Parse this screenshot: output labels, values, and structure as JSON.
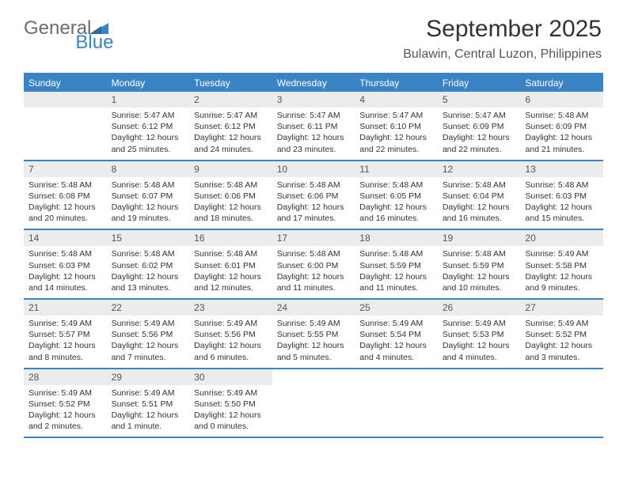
{
  "logo": {
    "text1": "General",
    "text2": "Blue"
  },
  "header": {
    "month": "September 2025",
    "location": "Bulawin, Central Luzon, Philippines"
  },
  "colors": {
    "accent": "#3a84c5",
    "header_bg": "#3a84c5",
    "daynum_bg": "#ececec",
    "text": "#333333"
  },
  "weekdays": [
    "Sunday",
    "Monday",
    "Tuesday",
    "Wednesday",
    "Thursday",
    "Friday",
    "Saturday"
  ],
  "weeks": [
    [
      null,
      {
        "n": "1",
        "sr": "Sunrise: 5:47 AM",
        "ss": "Sunset: 6:12 PM",
        "d1": "Daylight: 12 hours",
        "d2": "and 25 minutes."
      },
      {
        "n": "2",
        "sr": "Sunrise: 5:47 AM",
        "ss": "Sunset: 6:12 PM",
        "d1": "Daylight: 12 hours",
        "d2": "and 24 minutes."
      },
      {
        "n": "3",
        "sr": "Sunrise: 5:47 AM",
        "ss": "Sunset: 6:11 PM",
        "d1": "Daylight: 12 hours",
        "d2": "and 23 minutes."
      },
      {
        "n": "4",
        "sr": "Sunrise: 5:47 AM",
        "ss": "Sunset: 6:10 PM",
        "d1": "Daylight: 12 hours",
        "d2": "and 22 minutes."
      },
      {
        "n": "5",
        "sr": "Sunrise: 5:47 AM",
        "ss": "Sunset: 6:09 PM",
        "d1": "Daylight: 12 hours",
        "d2": "and 22 minutes."
      },
      {
        "n": "6",
        "sr": "Sunrise: 5:48 AM",
        "ss": "Sunset: 6:09 PM",
        "d1": "Daylight: 12 hours",
        "d2": "and 21 minutes."
      }
    ],
    [
      {
        "n": "7",
        "sr": "Sunrise: 5:48 AM",
        "ss": "Sunset: 6:08 PM",
        "d1": "Daylight: 12 hours",
        "d2": "and 20 minutes."
      },
      {
        "n": "8",
        "sr": "Sunrise: 5:48 AM",
        "ss": "Sunset: 6:07 PM",
        "d1": "Daylight: 12 hours",
        "d2": "and 19 minutes."
      },
      {
        "n": "9",
        "sr": "Sunrise: 5:48 AM",
        "ss": "Sunset: 6:06 PM",
        "d1": "Daylight: 12 hours",
        "d2": "and 18 minutes."
      },
      {
        "n": "10",
        "sr": "Sunrise: 5:48 AM",
        "ss": "Sunset: 6:06 PM",
        "d1": "Daylight: 12 hours",
        "d2": "and 17 minutes."
      },
      {
        "n": "11",
        "sr": "Sunrise: 5:48 AM",
        "ss": "Sunset: 6:05 PM",
        "d1": "Daylight: 12 hours",
        "d2": "and 16 minutes."
      },
      {
        "n": "12",
        "sr": "Sunrise: 5:48 AM",
        "ss": "Sunset: 6:04 PM",
        "d1": "Daylight: 12 hours",
        "d2": "and 16 minutes."
      },
      {
        "n": "13",
        "sr": "Sunrise: 5:48 AM",
        "ss": "Sunset: 6:03 PM",
        "d1": "Daylight: 12 hours",
        "d2": "and 15 minutes."
      }
    ],
    [
      {
        "n": "14",
        "sr": "Sunrise: 5:48 AM",
        "ss": "Sunset: 6:03 PM",
        "d1": "Daylight: 12 hours",
        "d2": "and 14 minutes."
      },
      {
        "n": "15",
        "sr": "Sunrise: 5:48 AM",
        "ss": "Sunset: 6:02 PM",
        "d1": "Daylight: 12 hours",
        "d2": "and 13 minutes."
      },
      {
        "n": "16",
        "sr": "Sunrise: 5:48 AM",
        "ss": "Sunset: 6:01 PM",
        "d1": "Daylight: 12 hours",
        "d2": "and 12 minutes."
      },
      {
        "n": "17",
        "sr": "Sunrise: 5:48 AM",
        "ss": "Sunset: 6:00 PM",
        "d1": "Daylight: 12 hours",
        "d2": "and 11 minutes."
      },
      {
        "n": "18",
        "sr": "Sunrise: 5:48 AM",
        "ss": "Sunset: 5:59 PM",
        "d1": "Daylight: 12 hours",
        "d2": "and 11 minutes."
      },
      {
        "n": "19",
        "sr": "Sunrise: 5:48 AM",
        "ss": "Sunset: 5:59 PM",
        "d1": "Daylight: 12 hours",
        "d2": "and 10 minutes."
      },
      {
        "n": "20",
        "sr": "Sunrise: 5:49 AM",
        "ss": "Sunset: 5:58 PM",
        "d1": "Daylight: 12 hours",
        "d2": "and 9 minutes."
      }
    ],
    [
      {
        "n": "21",
        "sr": "Sunrise: 5:49 AM",
        "ss": "Sunset: 5:57 PM",
        "d1": "Daylight: 12 hours",
        "d2": "and 8 minutes."
      },
      {
        "n": "22",
        "sr": "Sunrise: 5:49 AM",
        "ss": "Sunset: 5:56 PM",
        "d1": "Daylight: 12 hours",
        "d2": "and 7 minutes."
      },
      {
        "n": "23",
        "sr": "Sunrise: 5:49 AM",
        "ss": "Sunset: 5:56 PM",
        "d1": "Daylight: 12 hours",
        "d2": "and 6 minutes."
      },
      {
        "n": "24",
        "sr": "Sunrise: 5:49 AM",
        "ss": "Sunset: 5:55 PM",
        "d1": "Daylight: 12 hours",
        "d2": "and 5 minutes."
      },
      {
        "n": "25",
        "sr": "Sunrise: 5:49 AM",
        "ss": "Sunset: 5:54 PM",
        "d1": "Daylight: 12 hours",
        "d2": "and 4 minutes."
      },
      {
        "n": "26",
        "sr": "Sunrise: 5:49 AM",
        "ss": "Sunset: 5:53 PM",
        "d1": "Daylight: 12 hours",
        "d2": "and 4 minutes."
      },
      {
        "n": "27",
        "sr": "Sunrise: 5:49 AM",
        "ss": "Sunset: 5:52 PM",
        "d1": "Daylight: 12 hours",
        "d2": "and 3 minutes."
      }
    ],
    [
      {
        "n": "28",
        "sr": "Sunrise: 5:49 AM",
        "ss": "Sunset: 5:52 PM",
        "d1": "Daylight: 12 hours",
        "d2": "and 2 minutes."
      },
      {
        "n": "29",
        "sr": "Sunrise: 5:49 AM",
        "ss": "Sunset: 5:51 PM",
        "d1": "Daylight: 12 hours",
        "d2": "and 1 minute."
      },
      {
        "n": "30",
        "sr": "Sunrise: 5:49 AM",
        "ss": "Sunset: 5:50 PM",
        "d1": "Daylight: 12 hours",
        "d2": "and 0 minutes."
      },
      null,
      null,
      null,
      null
    ]
  ]
}
